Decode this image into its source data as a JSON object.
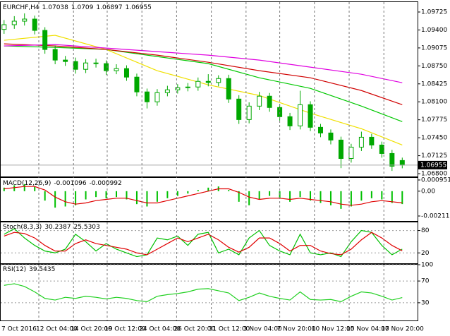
{
  "chart_data": [
    {
      "type": "candlestick",
      "title": "EURCHF,H4",
      "color": "#00a800",
      "open": [
        1.0941,
        1.09495,
        1.09559,
        1.09597,
        1.09392,
        1.09047,
        1.08855,
        1.08829,
        1.08688,
        1.08803,
        1.08791,
        1.08663,
        1.08701,
        1.08547,
        1.08279,
        1.081,
        1.08266,
        1.08317,
        1.08355,
        1.08368,
        1.0847,
        1.0845,
        1.08521,
        1.0815,
        1.07779,
        1.08022,
        1.08202,
        1.07997,
        1.07831,
        1.07664,
        1.08048,
        1.07639,
        1.07536,
        1.07408,
        1.07075,
        1.0728,
        1.07459,
        1.07318,
        1.07165,
        1.07038
      ],
      "high": [
        1.0958,
        1.0965,
        1.097,
        1.0966,
        1.0945,
        1.0912,
        1.0893,
        1.089,
        1.0887,
        1.0888,
        1.0885,
        1.0878,
        1.0876,
        1.0861,
        1.0834,
        1.0833,
        1.0839,
        1.0842,
        1.0844,
        1.0854,
        1.086,
        1.0858,
        1.0859,
        1.0822,
        1.0809,
        1.0828,
        1.0826,
        1.0806,
        1.079,
        1.083,
        1.0811,
        1.077,
        1.076,
        1.0747,
        1.0734,
        1.0756,
        1.0752,
        1.0738,
        1.0723,
        1.0709
      ],
      "low": [
        1.0933,
        1.0942,
        1.0948,
        1.0932,
        1.0897,
        1.0878,
        1.0875,
        1.0861,
        1.0862,
        1.0872,
        1.0859,
        1.086,
        1.0848,
        1.082,
        1.0798,
        1.0803,
        1.082,
        1.0825,
        1.0829,
        1.083,
        1.0838,
        1.0838,
        1.0808,
        1.077,
        1.0771,
        1.0795,
        1.0792,
        1.0776,
        1.0759,
        1.076,
        1.0757,
        1.0746,
        1.0733,
        1.069,
        1.07,
        1.0721,
        1.0725,
        1.0709,
        1.0685,
        1.06897
      ],
      "close": [
        1.09495,
        1.09559,
        1.09597,
        1.09392,
        1.09047,
        1.08855,
        1.08829,
        1.08688,
        1.08803,
        1.08791,
        1.08663,
        1.08701,
        1.08547,
        1.08279,
        1.081,
        1.08266,
        1.08317,
        1.08355,
        1.08368,
        1.0847,
        1.0845,
        1.08521,
        1.0815,
        1.07779,
        1.08022,
        1.08202,
        1.07997,
        1.07831,
        1.07664,
        1.08048,
        1.07639,
        1.07536,
        1.07408,
        1.07075,
        1.0728,
        1.07459,
        1.07318,
        1.07165,
        1.06935,
        1.06955
      ],
      "series": [
        {
          "color": "#f0e000",
          "x": [
            0,
            5,
            10,
            15,
            20,
            25,
            30,
            35,
            39
          ],
          "values": [
            1.09213,
            1.09303,
            1.09047,
            1.08663,
            1.08407,
            1.08215,
            1.07895,
            1.07613,
            1.07319
          ]
        },
        {
          "color": "#00c800",
          "x": [
            0,
            5,
            10,
            15,
            20,
            25,
            30,
            35,
            39
          ],
          "values": [
            1.09111,
            1.09085,
            1.09047,
            1.08919,
            1.08791,
            1.08535,
            1.08343,
            1.08023,
            1.07741
          ]
        },
        {
          "color": "#d00000",
          "x": [
            0,
            5,
            10,
            15,
            20,
            25,
            30,
            35,
            39
          ],
          "values": [
            1.09149,
            1.09111,
            1.09047,
            1.08944,
            1.08816,
            1.08663,
            1.08535,
            1.08304,
            1.08048
          ]
        },
        {
          "color": "#e000e0",
          "x": [
            0,
            5,
            10,
            15,
            20,
            25,
            30,
            35,
            39
          ],
          "values": [
            1.09111,
            1.09136,
            1.09072,
            1.09008,
            1.08944,
            1.08855,
            1.08727,
            1.08599,
            1.08445
          ]
        }
      ],
      "xlim": [
        -0.4,
        40.5
      ],
      "ylim": [
        1.06762,
        1.09891
      ],
      "yticks": [
        1.09725,
        {
          "value": 1.094,
          "label": "1.09400"
        },
        1.09075,
        {
          "value": 1.0875,
          "label": "1.08750"
        },
        1.08425,
        {
          "value": 1.081,
          "label": "1.08100"
        },
        1.07775,
        {
          "value": 1.0745,
          "label": "1.07450"
        },
        1.07125,
        {
          "value": 1.068,
          "label": "1.06800"
        }
      ]
    },
    {
      "type": "macd",
      "title": "MACD(12,26,9)",
      "series": [
        {
          "color": "#00c000",
          "values": [
            0.0003,
            0.0005,
            0.0006,
            0.0004,
            -0.0008,
            -0.0014,
            -0.0013,
            -0.0012,
            -0.0007,
            -0.0005,
            -0.0006,
            -0.0005,
            -0.0007,
            -0.0011,
            -0.0013,
            -0.0009,
            -0.0006,
            -0.0004,
            -0.0002,
            0.0001,
            0.0003,
            0.0004,
            0.0001,
            -0.0009,
            -0.0012,
            -0.0007,
            -0.0004,
            -0.0006,
            -0.0009,
            -0.0005,
            -0.0008,
            -0.001,
            -0.0012,
            -0.0015,
            -0.0013,
            -0.0008,
            -0.0006,
            -0.0007,
            -0.001,
            -0.001096
          ]
        },
        {
          "color": "#e00000",
          "values": [
            0.0002,
            0.0003,
            0.0004,
            0.0004,
            0.0001,
            -0.0005,
            -0.0009,
            -0.0011,
            -0.001,
            -0.0008,
            -0.0007,
            -0.0006,
            -0.0006,
            -0.0008,
            -0.001,
            -0.001,
            -0.0008,
            -0.0006,
            -0.0004,
            -0.0002,
            0,
            0.0002,
            0.0002,
            -0.0001,
            -0.0005,
            -0.0007,
            -0.0006,
            -0.0006,
            -0.0007,
            -0.0006,
            -0.0007,
            -0.0008,
            -0.0009,
            -0.0011,
            -0.0012,
            -0.0011,
            -0.0009,
            -0.0008,
            -0.0009,
            -0.000992
          ]
        }
      ],
      "ylim": [
        -0.00247,
        0.00113
      ],
      "yticks": [
        0.000951,
        {
          "value": 0,
          "label": "0.00"
        },
        -0.00211
      ]
    },
    {
      "type": "stoch",
      "title": "Stoch(8,3,3)",
      "series": [
        {
          "color": "#00c000",
          "values": [
            70,
            85,
            60,
            40,
            25,
            20,
            30,
            70,
            50,
            25,
            45,
            30,
            20,
            10,
            15,
            60,
            55,
            65,
            40,
            70,
            75,
            20,
            30,
            15,
            60,
            80,
            40,
            25,
            15,
            70,
            20,
            15,
            20,
            10,
            50,
            80,
            75,
            40,
            15,
            30.2387
          ]
        },
        {
          "color": "#e00000",
          "values": [
            65,
            75,
            72,
            60,
            40,
            25,
            25,
            45,
            55,
            45,
            40,
            35,
            30,
            20,
            15,
            30,
            45,
            60,
            50,
            60,
            70,
            55,
            35,
            22,
            35,
            60,
            60,
            45,
            25,
            40,
            40,
            25,
            18,
            15,
            30,
            55,
            75,
            60,
            40,
            25.5303
          ]
        }
      ],
      "ylim": [
        -6,
        100
      ],
      "yticks": [
        80,
        20
      ]
    },
    {
      "type": "rsi",
      "title": "RSI(12)",
      "series": [
        {
          "color": "#20d020",
          "values": [
            62,
            65,
            60,
            50,
            38,
            35,
            40,
            38,
            42,
            40,
            37,
            40,
            38,
            34,
            32,
            42,
            45,
            47,
            50,
            55,
            56,
            52,
            48,
            34,
            40,
            48,
            42,
            38,
            35,
            50,
            36,
            35,
            36,
            32,
            42,
            50,
            48,
            42,
            35,
            39.5435
          ]
        }
      ],
      "ylim": [
        0,
        100
      ],
      "yticks": [
        100,
        70,
        30
      ],
      "xticks": [
        {
          "value": 0,
          "label": "7 Oct 2016"
        },
        {
          "value": 3.4,
          "label": "12 Oct 04:00"
        },
        {
          "value": 6.8,
          "label": "14 Oct 20:00"
        },
        {
          "value": 10.1,
          "label": "19 Oct 12:00"
        },
        {
          "value": 13.5,
          "label": "24 Oct 04:00"
        },
        {
          "value": 16.9,
          "label": "26 Oct 20:00"
        },
        {
          "value": 20.3,
          "label": "31 Oct 12:00"
        },
        {
          "value": 23.7,
          "label": "3 Nov 04:00"
        },
        {
          "value": 27.0,
          "label": "7 Nov 20:00"
        },
        {
          "value": 30.4,
          "label": "10 Nov 12:00"
        },
        {
          "value": 33.8,
          "label": "15 Nov 04:00"
        },
        {
          "value": 37.2,
          "label": "17 Nov 20:00"
        }
      ]
    }
  ]
}
